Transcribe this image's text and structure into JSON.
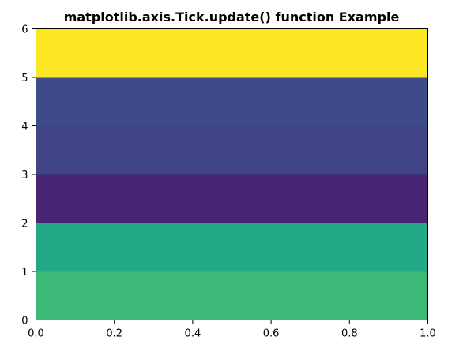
{
  "chart_data": {
    "type": "heatmap",
    "title": "matplotlib.axis.Tick.update() function Example",
    "xlabel": "",
    "ylabel": "",
    "xlim": [
      0.0,
      1.0
    ],
    "ylim": [
      0,
      6
    ],
    "x_ticks": [
      0.0,
      0.2,
      0.4,
      0.6,
      0.8,
      1.0
    ],
    "x_tick_labels": [
      "0.0",
      "0.2",
      "0.4",
      "0.6",
      "0.8",
      "1.0"
    ],
    "y_ticks": [
      0,
      1,
      2,
      3,
      4,
      5,
      6
    ],
    "y_tick_labels": [
      "0",
      "1",
      "2",
      "3",
      "4",
      "5",
      "6"
    ],
    "grid": false,
    "colormap": "viridis",
    "bands": [
      {
        "y0": 0,
        "y1": 1,
        "color": "#3db977"
      },
      {
        "y0": 1,
        "y1": 2,
        "color": "#22a884"
      },
      {
        "y0": 2,
        "y1": 3,
        "color": "#482475"
      },
      {
        "y0": 3,
        "y1": 4,
        "color": "#414487"
      },
      {
        "y0": 4,
        "y1": 5,
        "color": "#3f4a8a"
      },
      {
        "y0": 5,
        "y1": 6,
        "color": "#fde725"
      }
    ]
  }
}
